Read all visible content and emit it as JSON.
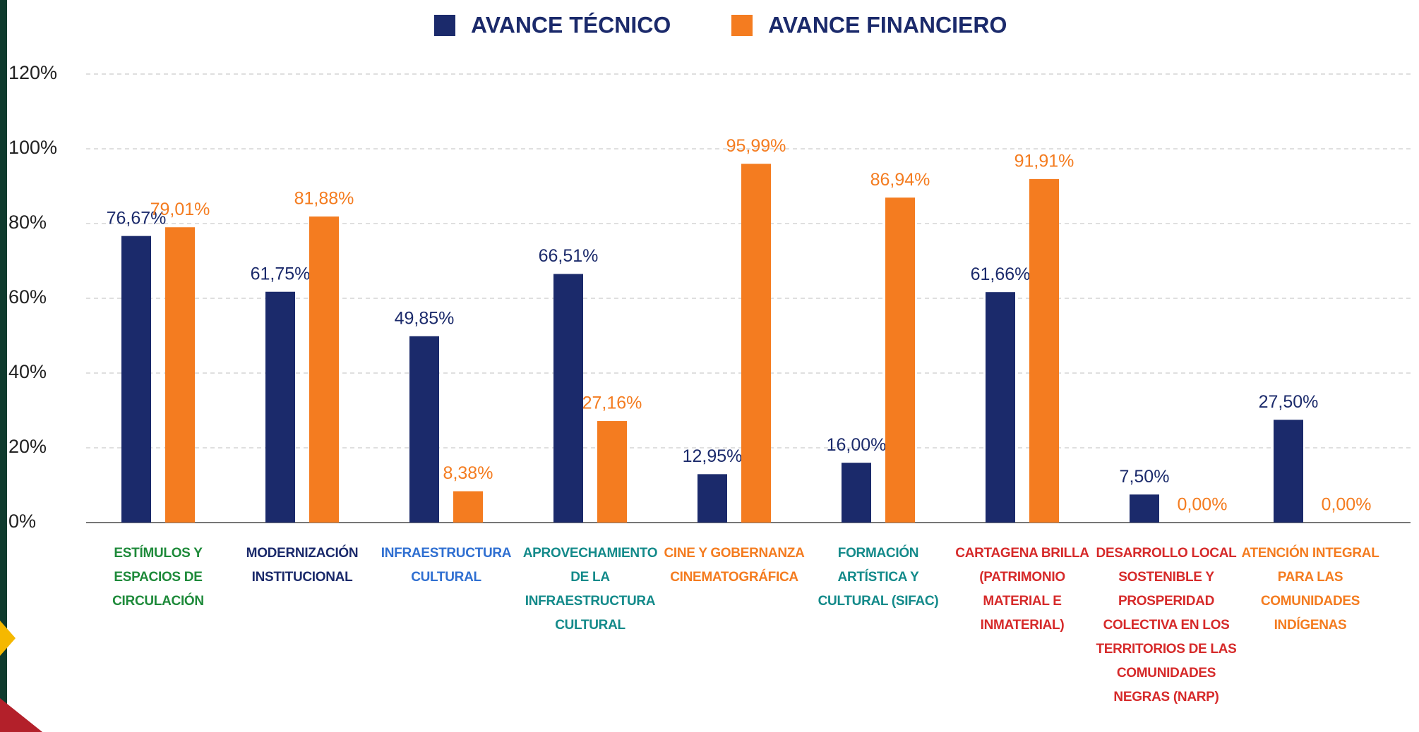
{
  "chart_data": {
    "type": "bar",
    "categories": [
      "ESTÍMULOS Y ESPACIOS DE CIRCULACIÓN",
      "MODERNIZACIÓN INSTITUCIONAL",
      "INFRAESTRUCTURA CULTURAL",
      "APROVECHAMIENTO DE LA INFRAESTRUCTURA CULTURAL",
      "CINE Y GOBERNANZA CINEMATOGRÁFICA",
      "FORMACIÓN ARTÍSTICA Y CULTURAL (SIFAC)",
      "CARTAGENA BRILLA (PATRIMONIO MATERIAL E INMATERIAL)",
      "DESARROLLO LOCAL SOSTENIBLE Y PROSPERIDAD COLECTIVA EN LOS TERRITORIOS DE LAS COMUNIDADES NEGRAS (NARP)",
      "ATENCIÓN INTEGRAL PARA LAS COMUNIDADES INDÍGENAS"
    ],
    "category_colors": [
      "#1e8a3a",
      "#1b2a6b",
      "#2f6fd1",
      "#138a8a",
      "#f47c20",
      "#138a8a",
      "#d62a2a",
      "#d62a2a",
      "#f47c20"
    ],
    "series": [
      {
        "name": "AVANCE TÉCNICO",
        "color": "#1b2a6b",
        "values": [
          76.67,
          61.75,
          49.85,
          66.51,
          12.95,
          16.0,
          61.66,
          7.5,
          27.5
        ],
        "value_labels": [
          "76,67%",
          "61,75%",
          "49,85%",
          "66,51%",
          "12,95%",
          "16,00%",
          "61,66%",
          "7,50%",
          "27,50%"
        ]
      },
      {
        "name": "AVANCE FINANCIERO",
        "color": "#f47c20",
        "values": [
          79.01,
          81.88,
          8.38,
          27.16,
          95.99,
          86.94,
          91.91,
          0.0,
          0.0
        ],
        "value_labels": [
          "79,01%",
          "81,88%",
          "8,38%",
          "27,16%",
          "95,99%",
          "86,94%",
          "91,91%",
          "0,00%",
          "0,00%"
        ]
      }
    ],
    "ylim": [
      0,
      120
    ],
    "yticks": [
      {
        "value": 0,
        "label": "0%"
      },
      {
        "value": 20,
        "label": "20%"
      },
      {
        "value": 40,
        "label": "40%"
      },
      {
        "value": 60,
        "label": "60%"
      },
      {
        "value": 80,
        "label": "80%"
      },
      {
        "value": 100,
        "label": "100%"
      },
      {
        "value": 120,
        "label": "120%"
      }
    ],
    "grid": true
  }
}
